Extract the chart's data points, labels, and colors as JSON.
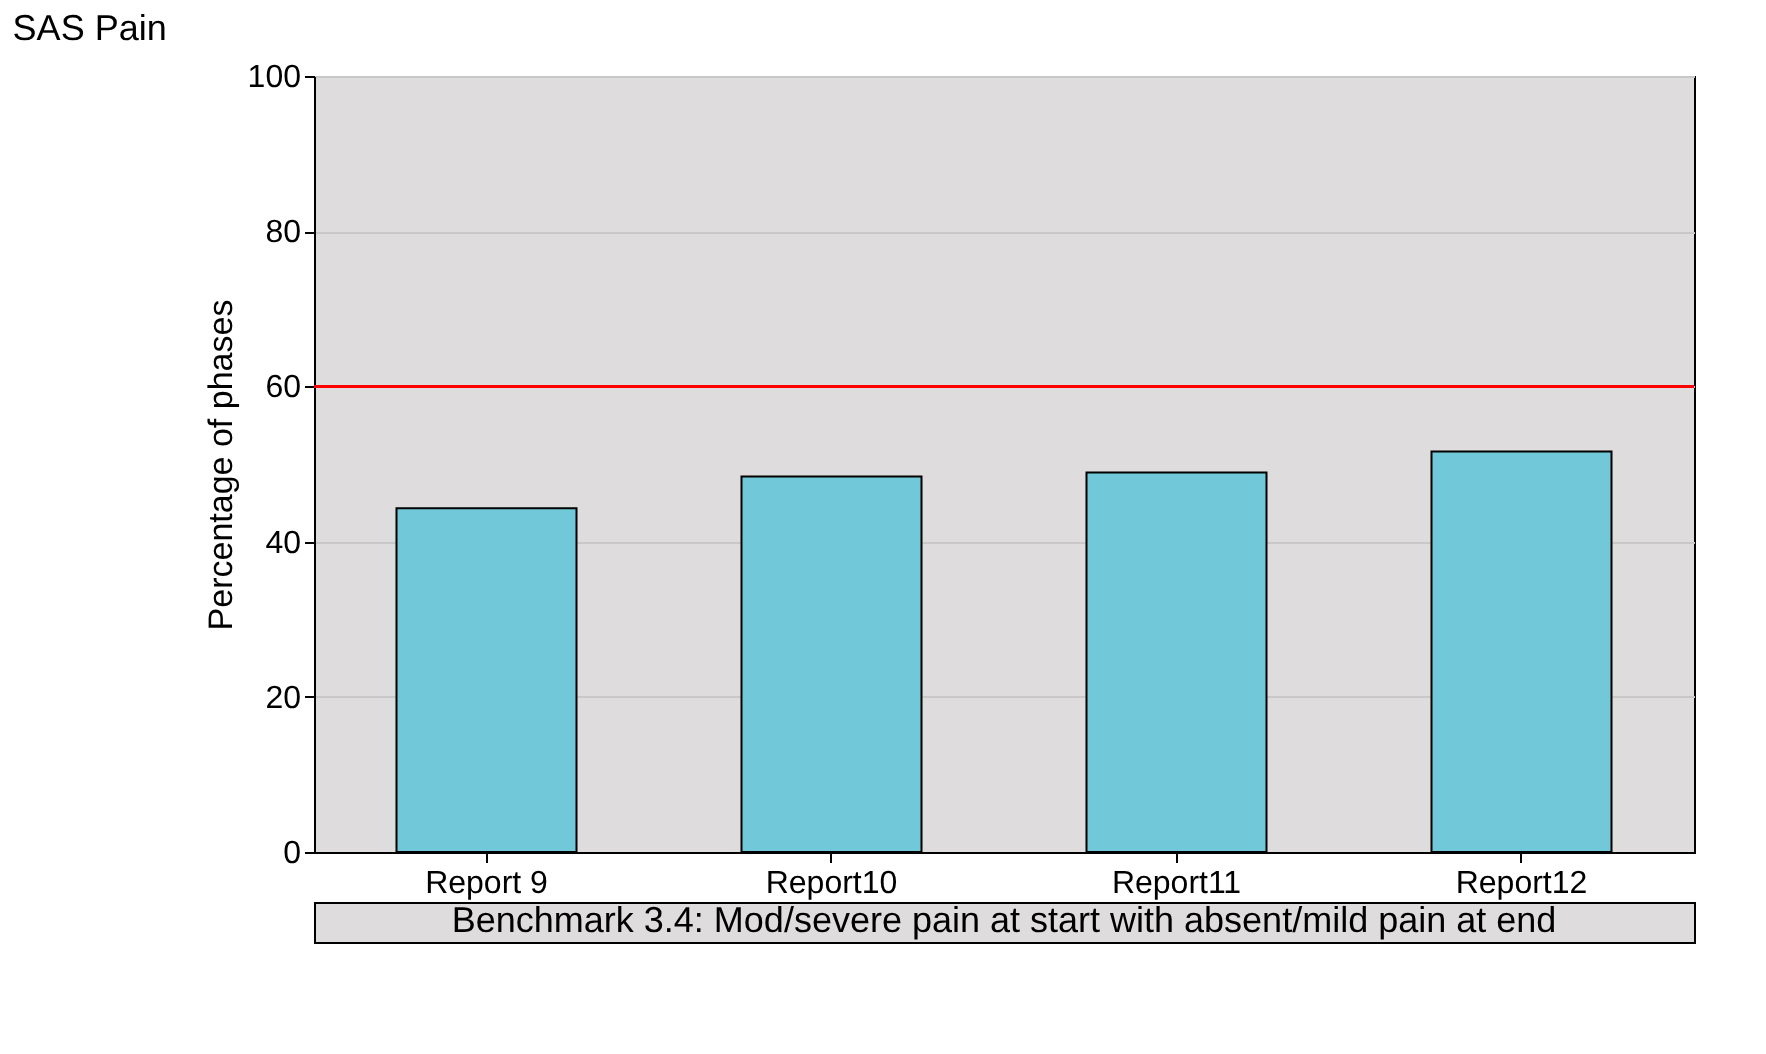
{
  "chart_data": {
    "type": "bar",
    "title": "SAS Pain",
    "ylabel": "Percentage of phases",
    "categories": [
      "Report 9",
      "Report10",
      "Report11",
      "Report12"
    ],
    "values": [
      44.3,
      48.4,
      48.9,
      51.6
    ],
    "color": "#70c8d8",
    "ylim": [
      0,
      100
    ],
    "yticks": [
      0,
      20,
      40,
      60,
      80,
      100
    ],
    "grid": "y",
    "ref_lines": [
      {
        "axis": "y",
        "value": 60,
        "color": "#ff0000"
      }
    ],
    "annotations": [
      "Benchmark 3.4: Mod/severe pain at start with absent/mild pain at end"
    ]
  }
}
